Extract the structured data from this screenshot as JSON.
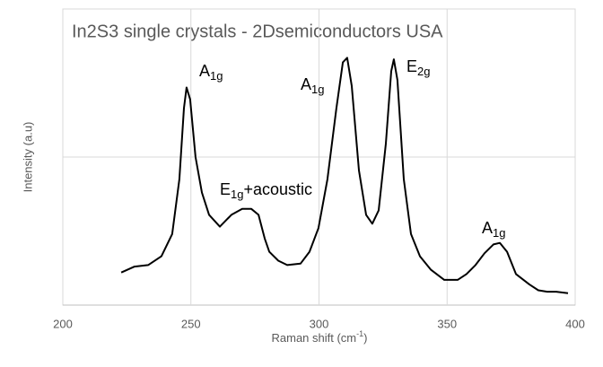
{
  "chart_data": {
    "type": "line",
    "title": "In2S3 single crystals - 2Dsemiconductors USA",
    "x_label": {
      "main": "Raman shift (cm",
      "sup": "-1",
      "end": ")"
    },
    "y_label": "Intensity (a.u)",
    "xlim": [
      200,
      400
    ],
    "xticks": [
      200,
      250,
      300,
      350,
      400
    ],
    "ylim": [
      0,
      2
    ],
    "ygrid": [
      0,
      1,
      2
    ],
    "grid": true,
    "series": [
      {
        "color": "#000000",
        "x": [
          222.8,
          228,
          233.3,
          238.5,
          242.7,
          245.5,
          247.3,
          248.3,
          249.7,
          251.8,
          254.3,
          257.1,
          261.3,
          265.8,
          270,
          273.6,
          276.4,
          278.8,
          280.6,
          284.1,
          287.6,
          292.8,
          296.3,
          299.8,
          303.3,
          306.8,
          309.3,
          311,
          312.8,
          315.6,
          318.4,
          320.8,
          323.3,
          326.1,
          328.2,
          329.2,
          330.6,
          333.1,
          335.9,
          339.4,
          343.6,
          348.9,
          354.1,
          357.6,
          361.1,
          364.6,
          368.1,
          370.6,
          373.4,
          376.9,
          382.1,
          385.6,
          389.1,
          392.6,
          397.2
        ],
        "values": [
          0.22,
          0.26,
          0.27,
          0.33,
          0.48,
          0.85,
          1.33,
          1.47,
          1.39,
          1.0,
          0.76,
          0.61,
          0.53,
          0.61,
          0.65,
          0.65,
          0.61,
          0.45,
          0.36,
          0.3,
          0.27,
          0.28,
          0.36,
          0.52,
          0.85,
          1.33,
          1.64,
          1.67,
          1.48,
          0.91,
          0.61,
          0.55,
          0.64,
          1.09,
          1.58,
          1.66,
          1.52,
          0.85,
          0.48,
          0.33,
          0.24,
          0.17,
          0.17,
          0.21,
          0.27,
          0.35,
          0.41,
          0.42,
          0.36,
          0.21,
          0.14,
          0.1,
          0.09,
          0.09,
          0.08
        ]
      }
    ],
    "annotations": [
      {
        "main": "A",
        "sub": "1g"
      },
      {
        "main": "A",
        "sub": "1g"
      },
      {
        "main": "E",
        "sub": "2g"
      },
      {
        "main": "E",
        "sub": "1g",
        "end": "+acoustic"
      },
      {
        "main": "A",
        "sub": "1g"
      }
    ]
  }
}
